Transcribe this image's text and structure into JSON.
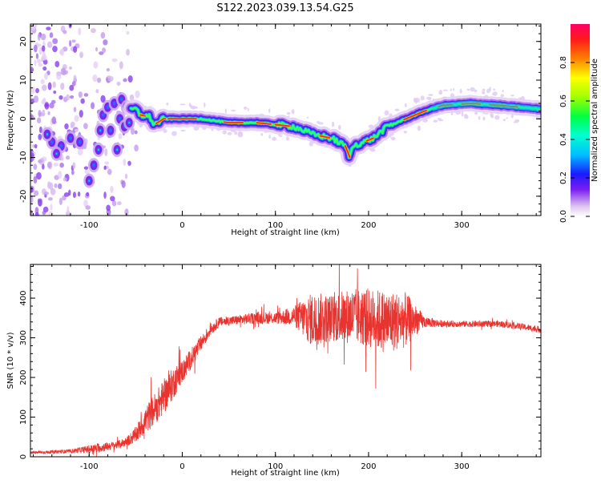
{
  "title": "S122.2023.039.13.54.G25",
  "chart_data": [
    {
      "type": "heatmap",
      "xlabel": "Height of straight line (km)",
      "ylabel": "Frequency (Hz)",
      "xlim": [
        -163,
        385
      ],
      "ylim": [
        -25,
        24.5
      ],
      "xticks": [
        -100,
        0,
        100,
        200,
        300
      ],
      "yticks": [
        -20,
        -10,
        0,
        10,
        20
      ],
      "colorbar": {
        "label": "Normalized spectral amplitude",
        "range": [
          0,
          1
        ],
        "ticks": [
          "0.0",
          "0.2",
          "0.4",
          "0.6",
          "0.8"
        ]
      },
      "ridge": {
        "description_points": [
          {
            "x": -50,
            "y": 2.5
          },
          {
            "x": -45,
            "y": 1
          },
          {
            "x": -35,
            "y": 0.5
          },
          {
            "x": -30,
            "y": -1.5
          },
          {
            "x": -20,
            "y": 0
          },
          {
            "x": 0,
            "y": 0
          },
          {
            "x": 20,
            "y": 0
          },
          {
            "x": 50,
            "y": -1
          },
          {
            "x": 80,
            "y": -1
          },
          {
            "x": 100,
            "y": -1.5
          },
          {
            "x": 120,
            "y": -2
          },
          {
            "x": 140,
            "y": -4
          },
          {
            "x": 160,
            "y": -5
          },
          {
            "x": 175,
            "y": -7
          },
          {
            "x": 180,
            "y": -10
          },
          {
            "x": 183,
            "y": -7
          },
          {
            "x": 195,
            "y": -6
          },
          {
            "x": 205,
            "y": -5
          },
          {
            "x": 220,
            "y": -2
          },
          {
            "x": 240,
            "y": 0
          },
          {
            "x": 260,
            "y": 2
          },
          {
            "x": 280,
            "y": 3.5
          },
          {
            "x": 310,
            "y": 4
          },
          {
            "x": 340,
            "y": 3.5
          },
          {
            "x": 385,
            "y": 2.5
          }
        ]
      }
    },
    {
      "type": "line",
      "xlabel": "Height of straight line (km)",
      "ylabel": "SNR (10 * v/v)",
      "xlim": [
        -163,
        385
      ],
      "ylim": [
        0,
        485
      ],
      "xticks": [
        -100,
        0,
        100,
        200,
        300
      ],
      "yticks": [
        0,
        100,
        200,
        300,
        400
      ],
      "color": "#e8332e",
      "envelope": {
        "x": [
          -163,
          -120,
          -90,
          -70,
          -60,
          -50,
          -40,
          -30,
          -20,
          -10,
          0,
          10,
          20,
          30,
          40,
          60,
          80,
          100,
          120,
          130,
          140,
          160,
          180,
          200,
          220,
          240,
          250,
          260,
          280,
          300,
          320,
          340,
          360,
          385
        ],
        "y": [
          10,
          14,
          22,
          30,
          38,
          55,
          90,
          120,
          150,
          185,
          215,
          250,
          285,
          320,
          340,
          345,
          350,
          350,
          355,
          350,
          345,
          350,
          355,
          350,
          340,
          345,
          345,
          340,
          335,
          335,
          335,
          335,
          330,
          320
        ],
        "noise": [
          3,
          5,
          12,
          10,
          12,
          20,
          35,
          40,
          45,
          40,
          30,
          25,
          20,
          15,
          12,
          12,
          15,
          15,
          25,
          50,
          70,
          60,
          70,
          75,
          80,
          70,
          40,
          15,
          8,
          8,
          8,
          8,
          8,
          8
        ]
      }
    }
  ]
}
